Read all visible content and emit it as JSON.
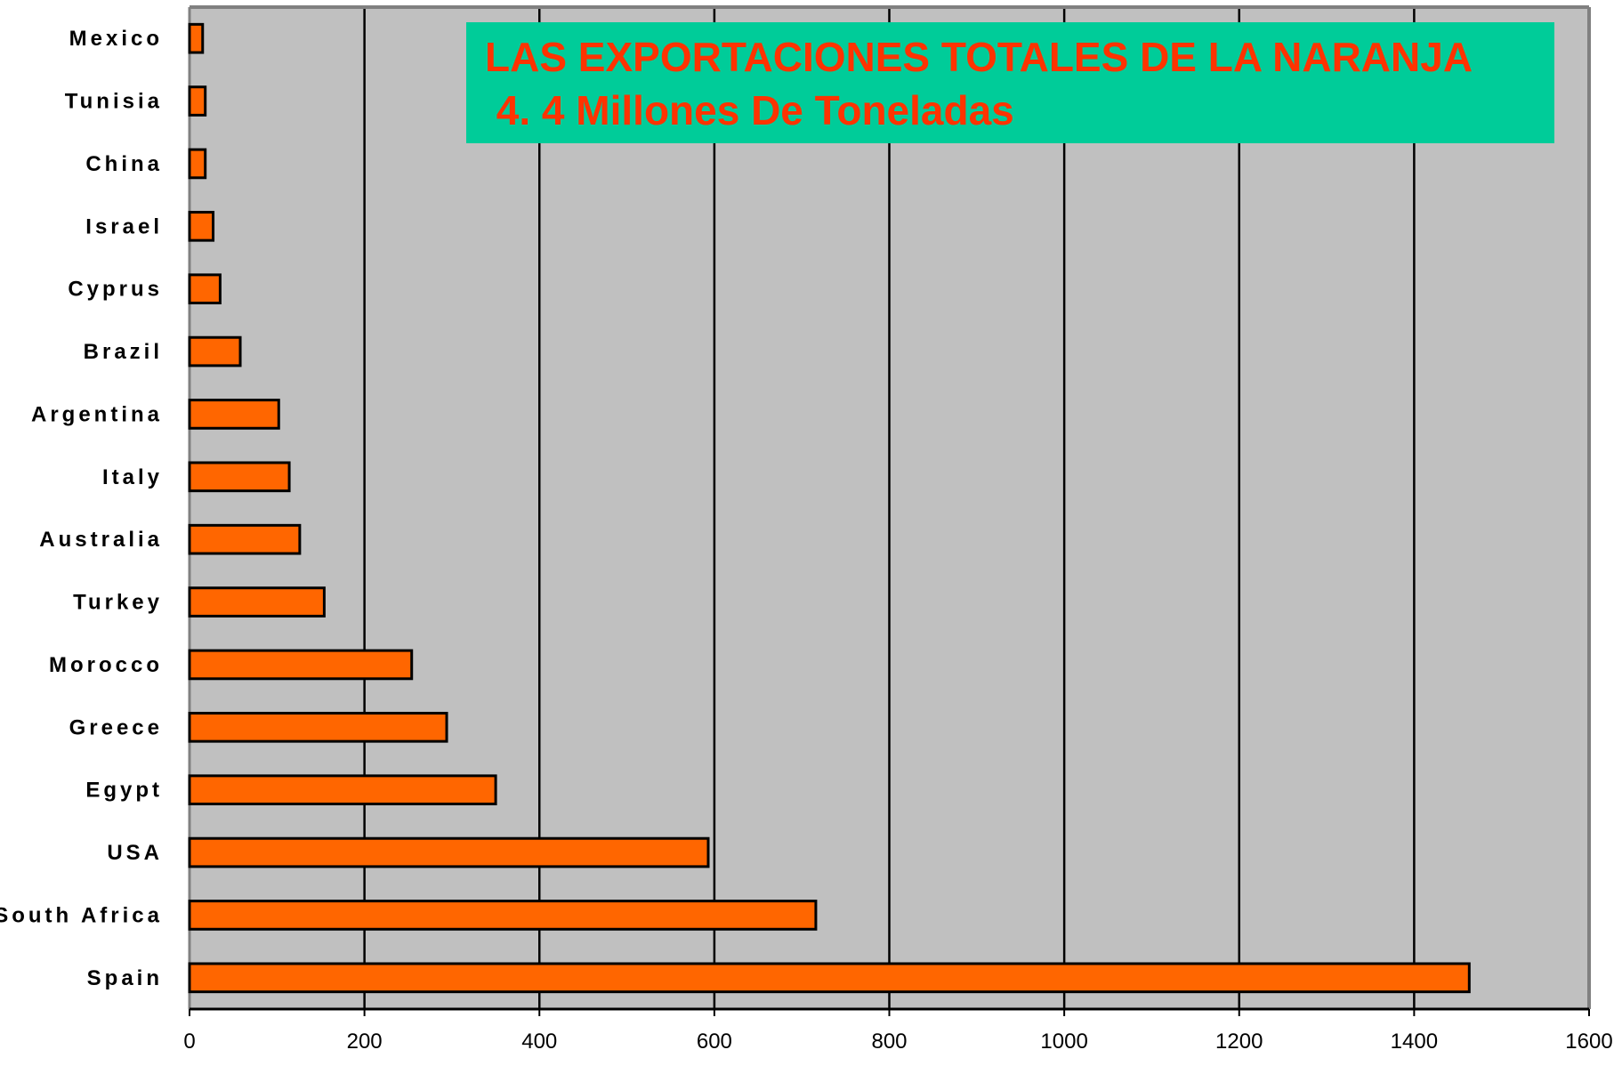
{
  "chart_data": {
    "type": "bar",
    "orientation": "horizontal",
    "title": "LAS EXPORTACIONES TOTALES DE LA NARANJA",
    "subtitle": " 4. 4 Millones De Toneladas",
    "categories": [
      "Mexico",
      "Tunisia",
      "China",
      "Israel",
      "Cyprus",
      "Brazil",
      "Argentina",
      "Italy",
      "Australia",
      "Turkey",
      "Morocco",
      "Greece",
      "Egypt",
      "USA",
      "South Africa",
      "Spain"
    ],
    "values": [
      15,
      18,
      18,
      27,
      35,
      58,
      102,
      114,
      126,
      154,
      254,
      294,
      350,
      593,
      716,
      1463
    ],
    "xlim": [
      0,
      1600
    ],
    "xticks": [
      "0",
      "200",
      "400",
      "600",
      "800",
      "1000",
      "1200",
      "1400",
      "1600"
    ],
    "xlabel": "",
    "ylabel": "",
    "grid": "vertical",
    "legend": "none",
    "colors": {
      "bar_fill": "#ff6600",
      "bar_stroke": "#000000",
      "plot_bg": "#c0c0c0",
      "title_box": "#00cc99",
      "title_text": "#ff3300",
      "grid": "#000000",
      "frame": "#808080"
    }
  }
}
